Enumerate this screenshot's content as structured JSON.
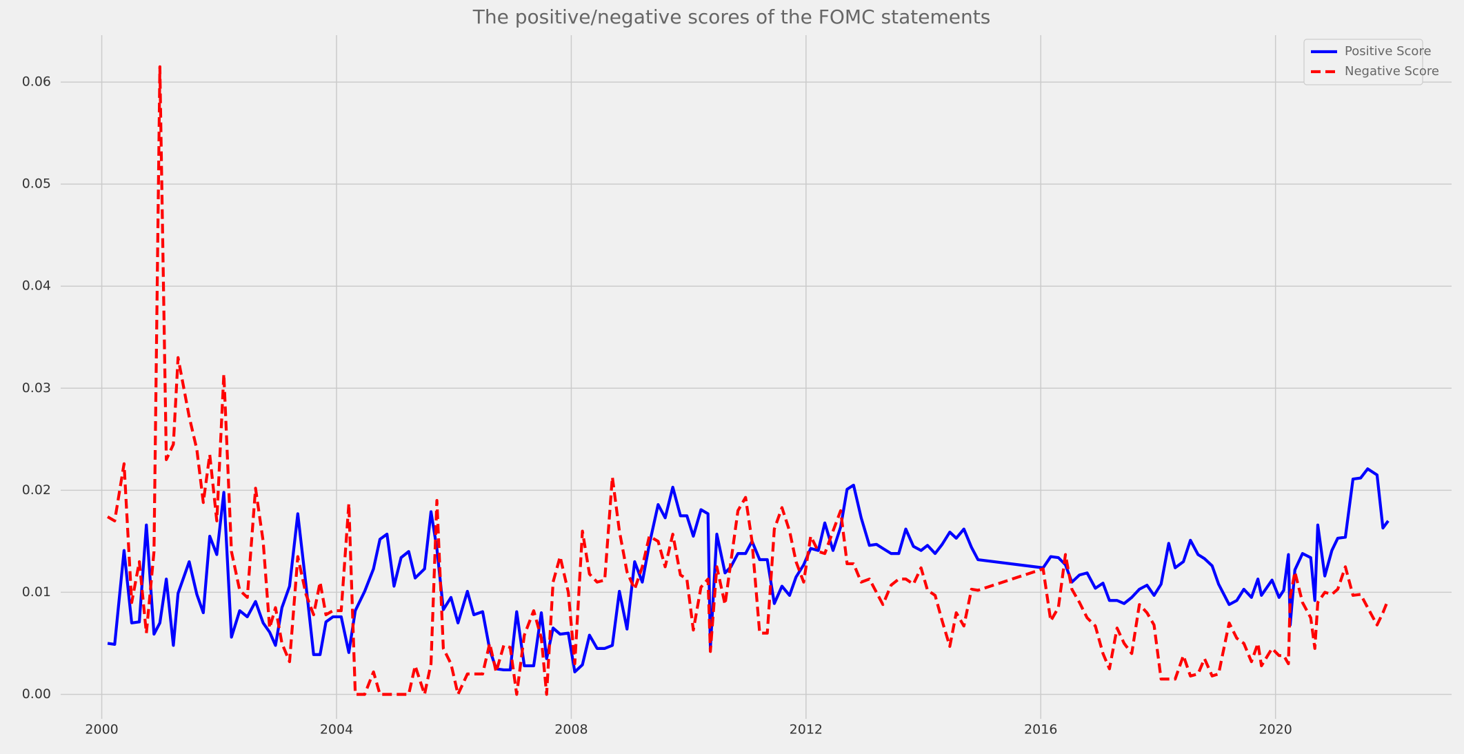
{
  "chart_data": {
    "type": "line",
    "title": "The positive/negative scores of the FOMC statements",
    "x": [
      2000.1,
      2000.22,
      2000.38,
      2000.51,
      2000.64,
      2000.76,
      2000.89,
      2000.99,
      2001.1,
      2001.22,
      2001.3,
      2001.49,
      2001.62,
      2001.73,
      2001.84,
      2001.96,
      2002.08,
      2002.21,
      2002.35,
      2002.48,
      2002.62,
      2002.75,
      2002.86,
      2002.96,
      2003.07,
      2003.2,
      2003.34,
      2003.48,
      2003.61,
      2003.72,
      2003.82,
      2003.94,
      2004.08,
      2004.21,
      2004.32,
      2004.48,
      2004.63,
      2004.74,
      2004.86,
      2004.98,
      2005.1,
      2005.23,
      2005.34,
      2005.5,
      2005.61,
      2005.71,
      2005.82,
      2005.95,
      2006.07,
      2006.23,
      2006.34,
      2006.49,
      2006.61,
      2006.72,
      2006.85,
      2006.96,
      2007.07,
      2007.2,
      2007.36,
      2007.49,
      2007.58,
      2007.69,
      2007.81,
      2007.95,
      2008.06,
      2008.19,
      2008.31,
      2008.44,
      2008.57,
      2008.7,
      2008.82,
      2008.95,
      2009.08,
      2009.21,
      2009.33,
      2009.48,
      2009.6,
      2009.73,
      2009.86,
      2009.97,
      2010.08,
      2010.21,
      2010.33,
      2010.37,
      2010.48,
      2010.62,
      2010.72,
      2010.84,
      2010.97,
      2011.08,
      2011.21,
      2011.34,
      2011.46,
      2011.59,
      2011.72,
      2011.83,
      2011.96,
      2012.08,
      2012.21,
      2012.32,
      2012.46,
      2012.59,
      2012.7,
      2012.81,
      2012.94,
      2013.08,
      2013.2,
      2013.31,
      2013.45,
      2013.58,
      2013.7,
      2013.83,
      2013.96,
      2014.07,
      2014.2,
      2014.32,
      2014.45,
      2014.56,
      2014.69,
      2014.82,
      2014.93,
      2016.04,
      2016.17,
      2016.3,
      2016.42,
      2016.53,
      2016.66,
      2016.79,
      2016.93,
      2017.06,
      2017.17,
      2017.3,
      2017.42,
      2017.55,
      2017.68,
      2017.81,
      2017.93,
      2018.05,
      2018.18,
      2018.29,
      2018.43,
      2018.55,
      2018.68,
      2018.79,
      2018.92,
      2019.03,
      2019.21,
      2019.34,
      2019.46,
      2019.59,
      2019.7,
      2019.76,
      2019.94,
      2020.06,
      2020.14,
      2020.22,
      2020.25,
      2020.33,
      2020.46,
      2020.6,
      2020.67,
      2020.72,
      2020.84,
      2020.96,
      2021.06,
      2021.19,
      2021.32,
      2021.45,
      2021.57,
      2021.73,
      2021.83,
      2021.92
    ],
    "series": [
      {
        "name": "Positive Score",
        "color": "#0000ff",
        "linestyle": "solid",
        "values": [
          0.005,
          0.0049,
          0.0141,
          0.007,
          0.0071,
          0.0166,
          0.0059,
          0.007,
          0.0113,
          0.0048,
          0.0099,
          0.013,
          0.0098,
          0.008,
          0.0155,
          0.0137,
          0.0198,
          0.0056,
          0.0082,
          0.0076,
          0.0091,
          0.007,
          0.0061,
          0.0048,
          0.0085,
          0.0106,
          0.0177,
          0.0107,
          0.0039,
          0.0039,
          0.0071,
          0.0076,
          0.0076,
          0.0041,
          0.0082,
          0.0101,
          0.0123,
          0.0152,
          0.0157,
          0.0106,
          0.0134,
          0.014,
          0.0114,
          0.0123,
          0.0179,
          0.0143,
          0.0083,
          0.0095,
          0.007,
          0.0101,
          0.0078,
          0.0081,
          0.0044,
          0.0025,
          0.0024,
          0.0024,
          0.0081,
          0.0028,
          0.0028,
          0.008,
          0.0035,
          0.0065,
          0.0059,
          0.006,
          0.0022,
          0.0029,
          0.0058,
          0.0045,
          0.0045,
          0.0048,
          0.0101,
          0.0064,
          0.013,
          0.011,
          0.0147,
          0.0186,
          0.0173,
          0.0203,
          0.0175,
          0.0175,
          0.0155,
          0.0181,
          0.0177,
          0.0045,
          0.0157,
          0.0119,
          0.0125,
          0.0138,
          0.0138,
          0.015,
          0.0132,
          0.0132,
          0.0089,
          0.0106,
          0.0097,
          0.0115,
          0.0127,
          0.0143,
          0.0141,
          0.0168,
          0.0141,
          0.0164,
          0.0201,
          0.0205,
          0.0173,
          0.0146,
          0.0147,
          0.0143,
          0.0138,
          0.0138,
          0.0162,
          0.0145,
          0.0141,
          0.0146,
          0.0138,
          0.0147,
          0.0159,
          0.0153,
          0.0162,
          0.0144,
          0.0132,
          0.0124,
          0.0135,
          0.0134,
          0.0127,
          0.011,
          0.0117,
          0.0119,
          0.0104,
          0.0109,
          0.0092,
          0.0092,
          0.0089,
          0.0095,
          0.0103,
          0.0107,
          0.0097,
          0.0108,
          0.0148,
          0.0124,
          0.013,
          0.0151,
          0.0137,
          0.0133,
          0.0126,
          0.0108,
          0.0088,
          0.0092,
          0.0103,
          0.0095,
          0.0113,
          0.0097,
          0.0112,
          0.0095,
          0.0102,
          0.0137,
          0.0068,
          0.0122,
          0.0138,
          0.0134,
          0.0092,
          0.0166,
          0.0116,
          0.0141,
          0.0153,
          0.0154,
          0.0211,
          0.0212,
          0.0221,
          0.0215,
          0.0163,
          0.017
        ]
      },
      {
        "name": "Negative Score",
        "color": "#ff0000",
        "linestyle": "dashed",
        "values": [
          0.0174,
          0.017,
          0.0226,
          0.009,
          0.013,
          0.006,
          0.014,
          0.0615,
          0.023,
          0.0245,
          0.033,
          0.0272,
          0.024,
          0.0188,
          0.0235,
          0.017,
          0.0314,
          0.014,
          0.0102,
          0.0095,
          0.0202,
          0.015,
          0.0065,
          0.0085,
          0.005,
          0.0032,
          0.0135,
          0.0098,
          0.0078,
          0.011,
          0.0078,
          0.0082,
          0.0082,
          0.0187,
          0,
          0,
          0.0022,
          0,
          0,
          0,
          0,
          0,
          0.0028,
          0,
          0.003,
          0.019,
          0.0045,
          0.003,
          0,
          0.002,
          0.002,
          0.002,
          0.005,
          0.0022,
          0.0048,
          0.0046,
          0,
          0.0058,
          0.0082,
          0.0055,
          0,
          0.011,
          0.0135,
          0.01,
          0.003,
          0.016,
          0.0118,
          0.011,
          0.0112,
          0.0213,
          0.016,
          0.012,
          0.0103,
          0.0125,
          0.0155,
          0.015,
          0.0125,
          0.0157,
          0.0117,
          0.0113,
          0.0063,
          0.0105,
          0.0113,
          0.0042,
          0.0125,
          0.0088,
          0.013,
          0.018,
          0.0193,
          0.015,
          0.006,
          0.006,
          0.0162,
          0.0183,
          0.016,
          0.013,
          0.011,
          0.0155,
          0.014,
          0.0138,
          0.016,
          0.018,
          0.0128,
          0.0128,
          0.011,
          0.0113,
          0.01,
          0.0088,
          0.0107,
          0.0113,
          0.0113,
          0.0108,
          0.0124,
          0.0102,
          0.0097,
          0.0072,
          0.0047,
          0.008,
          0.0067,
          0.0103,
          0.0102,
          0.0123,
          0.0072,
          0.0085,
          0.0137,
          0.0103,
          0.009,
          0.0075,
          0.0067,
          0.004,
          0.0025,
          0.0065,
          0.005,
          0.004,
          0.0088,
          0.008,
          0.0068,
          0.0015,
          0.0015,
          0.0015,
          0.0038,
          0.0018,
          0.002,
          0.0035,
          0.0018,
          0.002,
          0.007,
          0.0055,
          0.005,
          0.0032,
          0.005,
          0.0028,
          0.0045,
          0.0038,
          0.0038,
          0.003,
          0.0095,
          0.012,
          0.009,
          0.0075,
          0.0045,
          0.009,
          0.01,
          0.0098,
          0.0103,
          0.0125,
          0.0097,
          0.0098,
          0.0085,
          0.0068,
          0.008,
          0.0093
        ]
      }
    ],
    "xlim": [
      1999.3,
      2023.0
    ],
    "xticks": [
      2000,
      2004,
      2008,
      2012,
      2016,
      2020
    ],
    "ylim": [
      -0.0024,
      0.0646
    ],
    "yticks": [
      {
        "value": 0,
        "label": "0.00"
      },
      0.01,
      0.02,
      0.03,
      0.04,
      0.05,
      0.06
    ],
    "grid": true,
    "legend": "upper right"
  }
}
